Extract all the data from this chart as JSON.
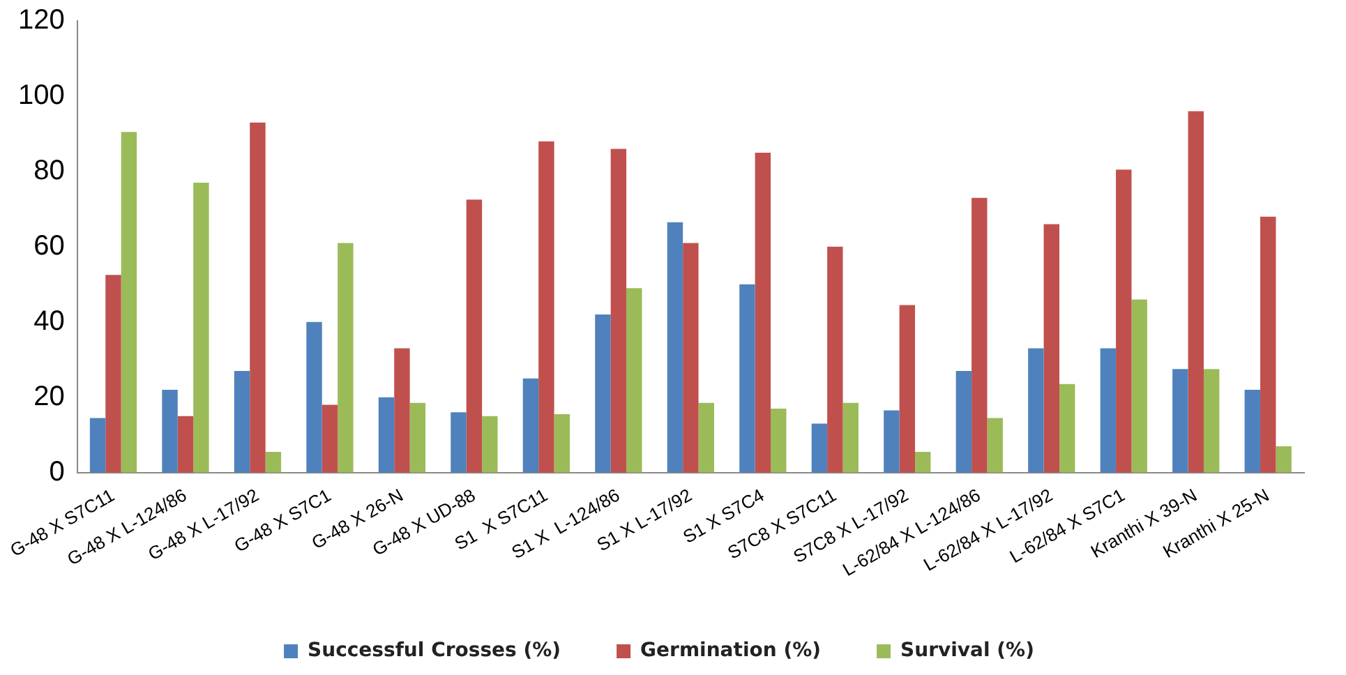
{
  "chart_data": {
    "type": "bar",
    "categories": [
      "G-48 X S7C11",
      "G-48 X L-124/86",
      "G-48 X L-17/92",
      "G-48 X S7C1",
      "G-48 X 26-N",
      "G-48 X UD-88",
      "S1  X S7C11",
      "S1 X  L-124/86",
      "S1 X L-17/92",
      "S1 X S7C4",
      "S7C8 X S7C11",
      "S7C8 X L-17/92",
      "L-62/84 X L-124/86",
      "L-62/84 X L-17/92",
      "L-62/84 X S7C1",
      "Kranthi X 39-N",
      "Kranthi X 25-N"
    ],
    "series": [
      {
        "name": "Successful Crosses (%)",
        "color": "#4f81bd",
        "values": [
          14.5,
          22,
          27,
          40,
          20,
          16,
          25,
          42,
          66.5,
          50,
          13,
          16.5,
          27,
          33,
          33,
          27.5,
          22
        ]
      },
      {
        "name": "Germination (%)",
        "color": "#c0504d",
        "values": [
          52.5,
          15,
          93,
          18,
          33,
          72.5,
          88,
          86,
          61,
          85,
          60,
          44.5,
          73,
          66,
          80.5,
          96,
          68
        ]
      },
      {
        "name": "Survival (%)",
        "color": "#9bbb59",
        "values": [
          90.5,
          77,
          5.5,
          61,
          18.5,
          15,
          15.5,
          49,
          18.5,
          17,
          18.5,
          5.5,
          14.5,
          23.5,
          46,
          27.5,
          7
        ]
      }
    ],
    "ylim": [
      0,
      120
    ],
    "yticks": [
      0,
      20,
      40,
      60,
      80,
      100,
      120
    ],
    "grid": false,
    "legend": "bottom"
  }
}
